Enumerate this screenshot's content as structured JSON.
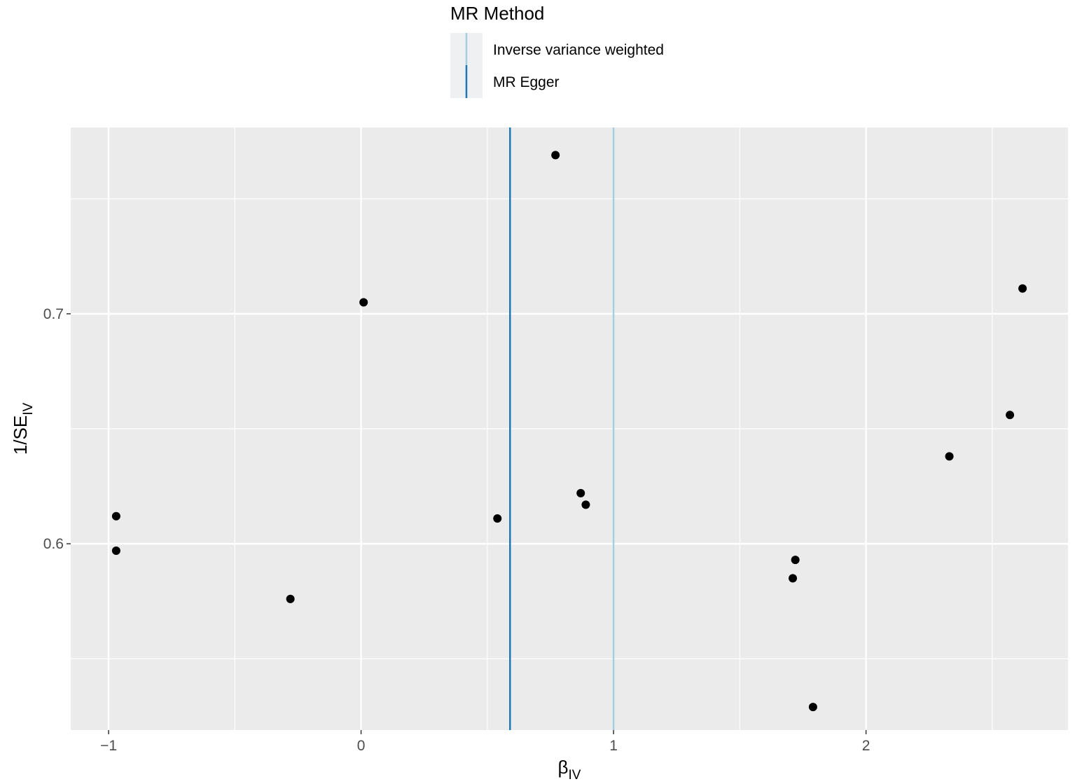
{
  "chart_data": {
    "type": "scatter",
    "title": "",
    "xlabel": {
      "main": "β",
      "sub": "IV"
    },
    "ylabel": {
      "main": "1/SE",
      "sub": "IV"
    },
    "xlim": [
      -1.15,
      2.8
    ],
    "ylim": [
      0.519,
      0.781
    ],
    "x_ticks": [
      -1,
      0,
      1,
      2
    ],
    "x_tick_labels": [
      "−1",
      "0",
      "1",
      "2"
    ],
    "x_minor_ticks": [
      -0.5,
      0.5,
      1.5,
      2.5
    ],
    "y_ticks": [
      0.6,
      0.7
    ],
    "y_tick_labels": [
      "0.6",
      "0.7"
    ],
    "y_minor_ticks": [
      0.55,
      0.65,
      0.75
    ],
    "grid": true,
    "points": [
      {
        "x": 0.77,
        "y": 0.769
      },
      {
        "x": 0.01,
        "y": 0.705
      },
      {
        "x": 2.62,
        "y": 0.711
      },
      {
        "x": 2.57,
        "y": 0.656
      },
      {
        "x": 2.33,
        "y": 0.638
      },
      {
        "x": 0.87,
        "y": 0.622
      },
      {
        "x": 0.89,
        "y": 0.617
      },
      {
        "x": -0.97,
        "y": 0.612
      },
      {
        "x": 0.54,
        "y": 0.611
      },
      {
        "x": -0.97,
        "y": 0.597
      },
      {
        "x": 1.72,
        "y": 0.593
      },
      {
        "x": 1.71,
        "y": 0.585
      },
      {
        "x": -0.28,
        "y": 0.576
      },
      {
        "x": 1.79,
        "y": 0.529
      }
    ],
    "vlines": [
      {
        "name": "Inverse variance weighted",
        "x": 1.0,
        "color": "#a6cee3"
      },
      {
        "name": "MR Egger",
        "x": 0.59,
        "color": "#1f78b4"
      }
    ],
    "legend": {
      "title": "MR Method",
      "position": "top",
      "items": [
        "Inverse variance weighted",
        "MR Egger"
      ]
    },
    "colors": {
      "panel": "#ebebeb",
      "grid": "#ffffff",
      "point": "#000000",
      "legend_key": "#eef0f2"
    }
  }
}
